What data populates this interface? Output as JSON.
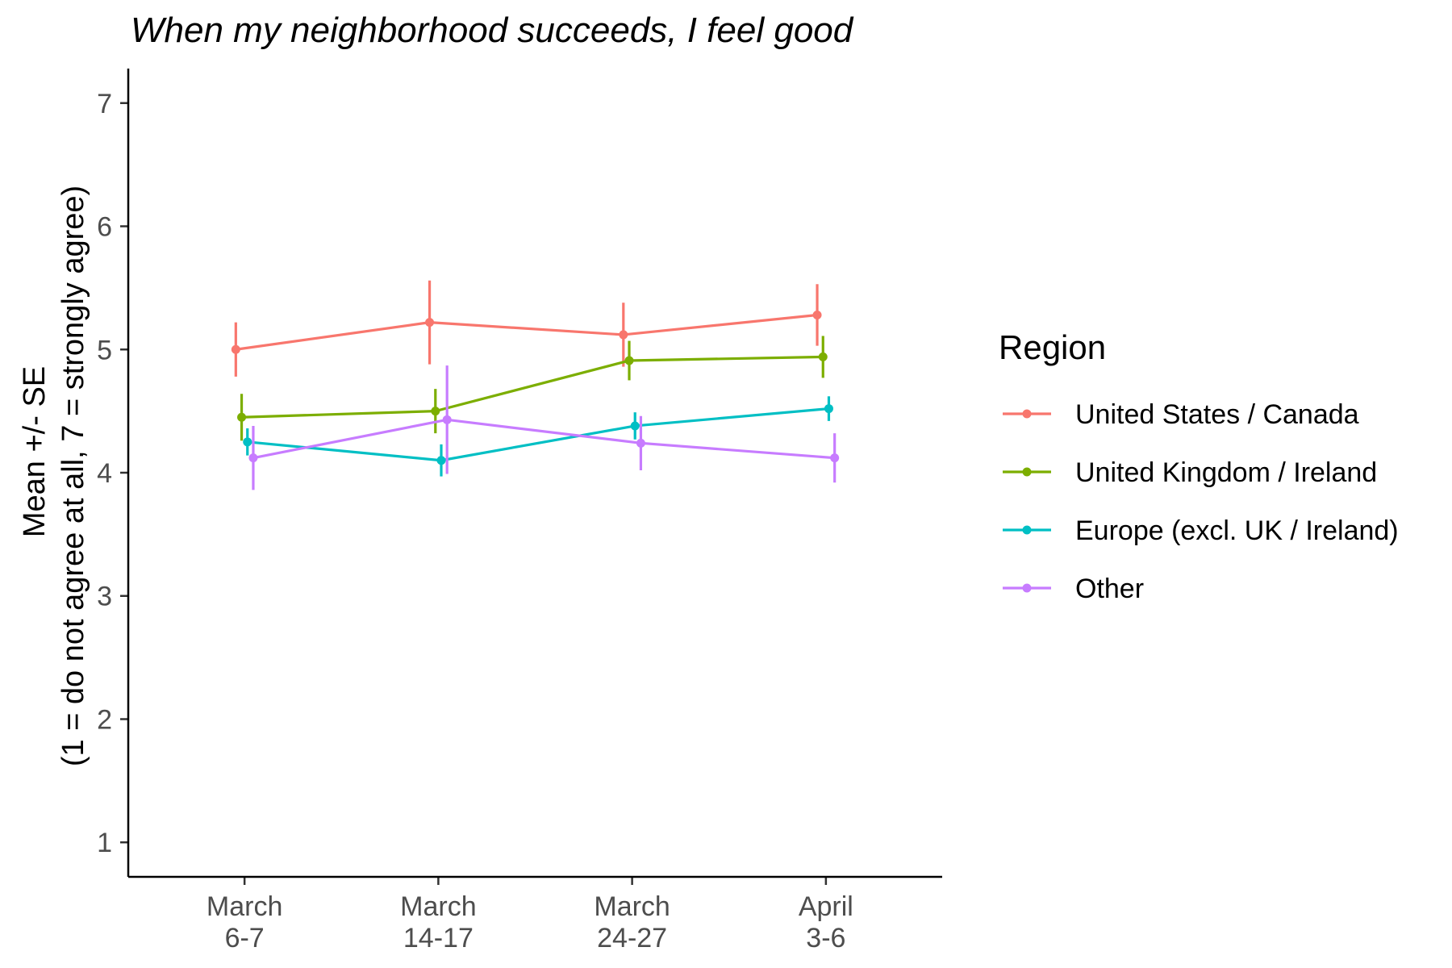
{
  "chart_data": {
    "type": "line",
    "title": "When my neighborhood succeeds, I feel good",
    "ylabel_line1": "Mean +/- SE",
    "ylabel_line2": "(1 = do not agree at all, 7 = strongly agree)",
    "xlabel": "",
    "ylim": [
      0.72,
      7.28
    ],
    "yticks": [
      1,
      2,
      3,
      4,
      5,
      6,
      7
    ],
    "categories": [
      {
        "line1": "March",
        "line2": "6-7"
      },
      {
        "line1": "March",
        "line2": "14-17"
      },
      {
        "line1": "March",
        "line2": "24-27"
      },
      {
        "line1": "April",
        "line2": "3-6"
      }
    ],
    "legend_title": "Region",
    "legend_position": "right",
    "grid": false,
    "series": [
      {
        "name": "United States / Canada",
        "color": "#F8766D",
        "dodge": -0.045,
        "values": [
          5.0,
          5.22,
          5.12,
          5.28
        ],
        "se": [
          0.22,
          0.34,
          0.26,
          0.25
        ]
      },
      {
        "name": "United Kingdom / Ireland",
        "color": "#7CAE00",
        "dodge": -0.015,
        "values": [
          4.45,
          4.5,
          4.91,
          4.94
        ],
        "se": [
          0.19,
          0.18,
          0.16,
          0.17
        ]
      },
      {
        "name": "Europe (excl. UK / Ireland)",
        "color": "#00BFC4",
        "dodge": 0.015,
        "values": [
          4.25,
          4.1,
          4.38,
          4.52
        ],
        "se": [
          0.11,
          0.13,
          0.11,
          0.1
        ]
      },
      {
        "name": "Other",
        "color": "#C77CFF",
        "dodge": 0.045,
        "values": [
          4.12,
          4.43,
          4.24,
          4.12
        ],
        "se": [
          0.26,
          0.44,
          0.22,
          0.2
        ]
      }
    ]
  }
}
